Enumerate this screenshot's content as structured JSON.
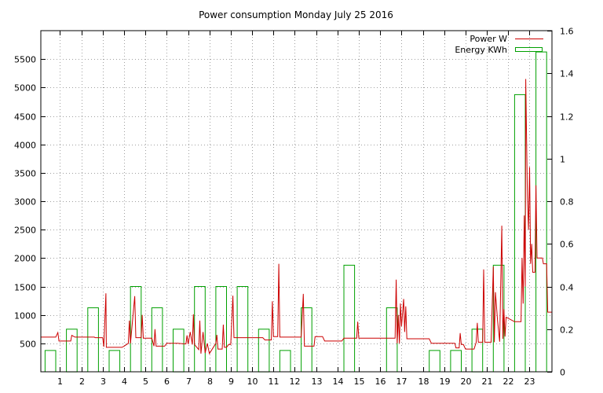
{
  "chart_data": {
    "type": "bar+line",
    "title": "Power consumption Monday July 25 2016",
    "x_ticks": [
      "1",
      "2",
      "3",
      "4",
      "5",
      "6",
      "7",
      "8",
      "9",
      "10",
      "11",
      "12",
      "13",
      "14",
      "15",
      "16",
      "17",
      "18",
      "19",
      "20",
      "21",
      "22",
      "23"
    ],
    "xlim": [
      0.1,
      24.05
    ],
    "y_left": {
      "ylim": [
        0,
        6000
      ],
      "ticks": [
        500,
        1000,
        1500,
        2000,
        2500,
        3000,
        3500,
        4000,
        4500,
        5000,
        5500
      ]
    },
    "y_right": {
      "ylim": [
        0,
        1.6
      ],
      "ticks": [
        0,
        0.2,
        0.4,
        0.6,
        0.8,
        1,
        1.2,
        1.4,
        1.6
      ]
    },
    "grid": true,
    "legend_position": "top-right",
    "series": [
      {
        "name": "Power W",
        "color": "#cc0000",
        "axis": "left",
        "points": [
          [
            0.1,
            610
          ],
          [
            0.8,
            610
          ],
          [
            0.9,
            690
          ],
          [
            0.95,
            540
          ],
          [
            1.5,
            540
          ],
          [
            1.55,
            640
          ],
          [
            1.7,
            610
          ],
          [
            2.6,
            610
          ],
          [
            2.65,
            600
          ],
          [
            3.0,
            600
          ],
          [
            3.05,
            440
          ],
          [
            3.15,
            1380
          ],
          [
            3.17,
            430
          ],
          [
            3.9,
            430
          ],
          [
            4.0,
            450
          ],
          [
            4.2,
            500
          ],
          [
            4.25,
            900
          ],
          [
            4.3,
            500
          ],
          [
            4.5,
            1330
          ],
          [
            4.55,
            600
          ],
          [
            4.8,
            600
          ],
          [
            4.85,
            1000
          ],
          [
            4.9,
            590
          ],
          [
            5.3,
            590
          ],
          [
            5.4,
            450
          ],
          [
            5.45,
            750
          ],
          [
            5.5,
            450
          ],
          [
            5.9,
            450
          ],
          [
            6.0,
            500
          ],
          [
            6.5,
            500
          ],
          [
            6.9,
            490
          ],
          [
            6.95,
            640
          ],
          [
            7.0,
            490
          ],
          [
            7.1,
            700
          ],
          [
            7.2,
            480
          ],
          [
            7.25,
            1010
          ],
          [
            7.3,
            480
          ],
          [
            7.5,
            390
          ],
          [
            7.55,
            900
          ],
          [
            7.6,
            320
          ],
          [
            7.7,
            700
          ],
          [
            7.8,
            330
          ],
          [
            7.9,
            500
          ],
          [
            8.0,
            320
          ],
          [
            8.3,
            500
          ],
          [
            8.35,
            650
          ],
          [
            8.4,
            400
          ],
          [
            8.6,
            400
          ],
          [
            8.65,
            830
          ],
          [
            8.7,
            430
          ],
          [
            8.8,
            430
          ],
          [
            8.9,
            480
          ],
          [
            9.0,
            480
          ],
          [
            9.1,
            1340
          ],
          [
            9.15,
            600
          ],
          [
            10.0,
            600
          ],
          [
            10.5,
            600
          ],
          [
            10.6,
            560
          ],
          [
            10.9,
            560
          ],
          [
            10.95,
            1240
          ],
          [
            11.0,
            620
          ],
          [
            11.2,
            620
          ],
          [
            11.25,
            1900
          ],
          [
            11.3,
            610
          ],
          [
            11.8,
            610
          ],
          [
            12.3,
            610
          ],
          [
            12.4,
            1370
          ],
          [
            12.45,
            450
          ],
          [
            12.9,
            450
          ],
          [
            12.95,
            620
          ],
          [
            13.3,
            620
          ],
          [
            13.4,
            540
          ],
          [
            14.2,
            540
          ],
          [
            14.3,
            590
          ],
          [
            14.9,
            590
          ],
          [
            14.95,
            880
          ],
          [
            15.0,
            590
          ],
          [
            16.0,
            590
          ],
          [
            16.7,
            590
          ],
          [
            16.75,
            1620
          ],
          [
            16.8,
            500
          ],
          [
            16.85,
            1000
          ],
          [
            16.9,
            500
          ],
          [
            16.95,
            1200
          ],
          [
            17.0,
            800
          ],
          [
            17.1,
            1280
          ],
          [
            17.15,
            700
          ],
          [
            17.2,
            1150
          ],
          [
            17.25,
            580
          ],
          [
            17.5,
            580
          ],
          [
            18.0,
            580
          ],
          [
            18.3,
            580
          ],
          [
            18.4,
            500
          ],
          [
            19.0,
            500
          ],
          [
            19.5,
            500
          ],
          [
            19.55,
            420
          ],
          [
            19.7,
            420
          ],
          [
            19.75,
            680
          ],
          [
            19.8,
            480
          ],
          [
            19.9,
            480
          ],
          [
            20.0,
            400
          ],
          [
            20.4,
            400
          ],
          [
            20.5,
            520
          ],
          [
            20.55,
            860
          ],
          [
            20.6,
            520
          ],
          [
            20.8,
            520
          ],
          [
            20.85,
            1800
          ],
          [
            20.9,
            520
          ],
          [
            21.2,
            520
          ],
          [
            21.3,
            1850
          ],
          [
            21.35,
            520
          ],
          [
            21.4,
            1400
          ],
          [
            21.5,
            900
          ],
          [
            21.6,
            530
          ],
          [
            21.7,
            2570
          ],
          [
            21.75,
            580
          ],
          [
            21.8,
            1100
          ],
          [
            21.85,
            620
          ],
          [
            21.9,
            960
          ],
          [
            22.3,
            880
          ],
          [
            22.4,
            880
          ],
          [
            22.6,
            880
          ],
          [
            22.65,
            2000
          ],
          [
            22.7,
            1200
          ],
          [
            22.75,
            2750
          ],
          [
            22.8,
            1500
          ],
          [
            22.82,
            5150
          ],
          [
            22.9,
            3100
          ],
          [
            22.95,
            2500
          ],
          [
            23.0,
            3600
          ],
          [
            23.05,
            1900
          ],
          [
            23.1,
            2250
          ],
          [
            23.15,
            1750
          ],
          [
            23.25,
            1750
          ],
          [
            23.3,
            3280
          ],
          [
            23.35,
            2000
          ],
          [
            23.6,
            2000
          ],
          [
            23.65,
            1900
          ],
          [
            23.8,
            1900
          ],
          [
            23.85,
            1050
          ],
          [
            24.05,
            1050
          ]
        ]
      },
      {
        "name": "Energy KWh",
        "color": "#00a000",
        "axis": "right",
        "bars": [
          [
            0,
            0.1
          ],
          [
            1,
            0.2
          ],
          [
            2,
            0.3
          ],
          [
            3,
            0.1
          ],
          [
            4,
            0.4
          ],
          [
            5,
            0.3
          ],
          [
            6,
            0.2
          ],
          [
            7,
            0.4
          ],
          [
            8,
            0.4
          ],
          [
            9,
            0.4
          ],
          [
            10,
            0.2
          ],
          [
            11,
            0.1
          ],
          [
            12,
            0.3
          ],
          [
            14,
            0.5
          ],
          [
            16,
            0.3
          ],
          [
            18,
            0.1
          ],
          [
            19,
            0.1
          ],
          [
            20,
            0.2
          ],
          [
            21,
            0.5
          ],
          [
            22,
            1.3
          ],
          [
            23,
            1.5
          ]
        ]
      }
    ]
  }
}
